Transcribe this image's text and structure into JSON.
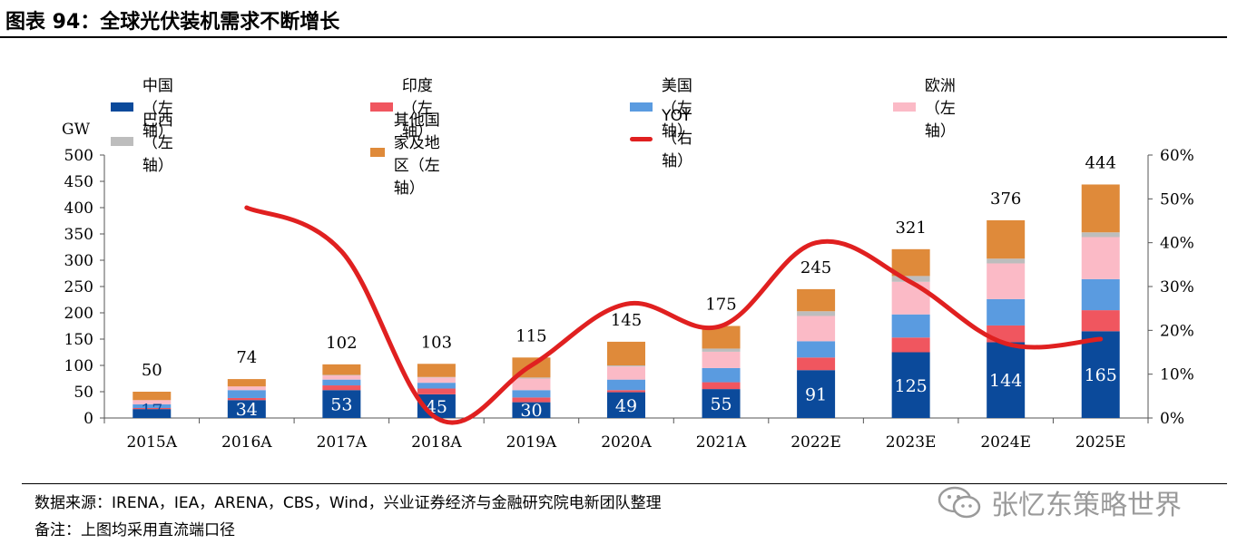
{
  "header": {
    "title": "图表 94：全球光伏装机需求不断增长"
  },
  "footer": {
    "source": "数据来源：IRENA，IEA，ARENA，CBS，Wind，兴业证券经济与金融研究院电新团队整理",
    "note": "备注：上图均采用直流端口径"
  },
  "watermark": {
    "text": "张忆东策略世界",
    "icon": "wechat-icon"
  },
  "chart_data": {
    "type": "bar",
    "stacked": true,
    "categories": [
      "2015A",
      "2016A",
      "2017A",
      "2018A",
      "2019A",
      "2020A",
      "2021A",
      "2022E",
      "2023E",
      "2024E",
      "2025E"
    ],
    "ylabel": "GW",
    "ylim": [
      0,
      500
    ],
    "yticks": [
      0,
      50,
      100,
      150,
      200,
      250,
      300,
      350,
      400,
      450,
      500
    ],
    "y2lim": [
      0,
      60
    ],
    "y2ticks": [
      "0%",
      "10%",
      "20%",
      "30%",
      "40%",
      "50%",
      "60%"
    ],
    "totals": [
      50,
      74,
      102,
      103,
      115,
      145,
      175,
      245,
      321,
      376,
      444
    ],
    "china_labels": [
      17,
      34,
      53,
      45,
      30,
      49,
      55,
      91,
      125,
      144,
      165
    ],
    "series": [
      {
        "name": "中国（左轴）",
        "color": "#0b4a9b",
        "values": [
          17,
          34,
          53,
          45,
          30,
          49,
          55,
          91,
          125,
          144,
          165
        ]
      },
      {
        "name": "印度（左轴）",
        "color": "#f0565f",
        "values": [
          2,
          4,
          9,
          11,
          9,
          4,
          13,
          24,
          28,
          32,
          40
        ]
      },
      {
        "name": "美国（左轴）",
        "color": "#5a9be0",
        "values": [
          7,
          15,
          11,
          11,
          14,
          20,
          27,
          31,
          44,
          50,
          59
        ]
      },
      {
        "name": "欧洲（左轴）",
        "color": "#fbbac6",
        "values": [
          8,
          7,
          8,
          10,
          22,
          25,
          31,
          48,
          62,
          68,
          80
        ]
      },
      {
        "name": "巴西（左轴）",
        "color": "#bdbdbd",
        "values": [
          0,
          0,
          1,
          1,
          2,
          2,
          6,
          9,
          11,
          9,
          9
        ]
      },
      {
        "name": "其他国家及地区（左轴）",
        "color": "#df8a3a",
        "values": [
          16,
          14,
          20,
          25,
          38,
          45,
          43,
          42,
          51,
          73,
          91
        ]
      }
    ],
    "line_series": {
      "name": "YOY（右轴）",
      "color": "#e02020",
      "axis": "right",
      "categories": [
        "2016A",
        "2017A",
        "2018A",
        "2019A",
        "2020A",
        "2021A",
        "2022E",
        "2023E",
        "2024E",
        "2025E"
      ],
      "values": [
        48,
        38,
        0,
        12,
        26,
        21,
        40,
        31,
        17,
        18
      ]
    },
    "legend_position": "top"
  }
}
